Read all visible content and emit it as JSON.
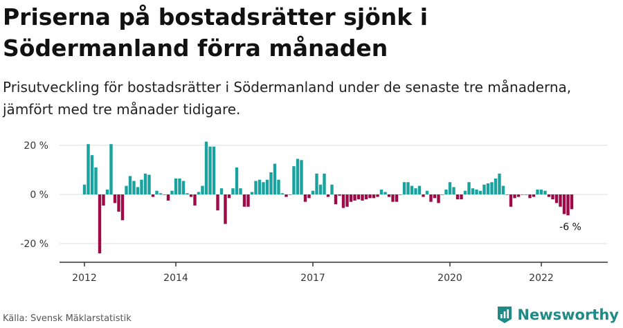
{
  "title": "Priserna på bostadsrätter sjönk i Södermanland förra månaden",
  "subtitle": "Prisutveckling för bostadsrätter i Södermanland under de senaste tre månaderna, jämfört med tre månader tidigare.",
  "source": "Källa: Svensk Mäklarstatistik",
  "brand": "Newsworthy",
  "colors": {
    "positive": "#1aa29f",
    "negative": "#9e0a48",
    "brand": "#1f8a86",
    "grid": "#dddddd",
    "axis": "#333333"
  },
  "chart_data": {
    "type": "bar",
    "x_start": "2012-01",
    "y_ticks": [
      20,
      0,
      -20
    ],
    "y_tick_labels": [
      "20 %",
      "0 %",
      "-20 %"
    ],
    "ylim": [
      -27,
      22
    ],
    "x_ticks": [
      "2012",
      "2014",
      "2017",
      "2020",
      "2022"
    ],
    "grid": true,
    "annotation": {
      "label": "-6 %",
      "target": "last"
    },
    "values": [
      4,
      20.5,
      16,
      11,
      -24,
      -4.5,
      2,
      20.5,
      -3.5,
      -7,
      -10.5,
      3.5,
      7.5,
      5.5,
      3,
      6,
      8.5,
      8,
      -1,
      1.5,
      0.5,
      0,
      -2.5,
      1.5,
      6.5,
      6.5,
      5.5,
      0.5,
      -1,
      -4.5,
      1,
      3.5,
      21.5,
      19.5,
      19.5,
      -6.5,
      2.5,
      -12,
      -1.5,
      2.5,
      11,
      2.5,
      -5,
      -5,
      1,
      5.5,
      6,
      5,
      6,
      9,
      12.5,
      6,
      0.5,
      -1,
      0,
      11.5,
      14.5,
      14,
      -3,
      -1.5,
      1.5,
      8.5,
      4,
      8.5,
      -1,
      4,
      -4,
      -0.5,
      -5.5,
      -5,
      -3,
      -2.5,
      -2,
      -2.5,
      -2,
      -1.5,
      -1.5,
      -1,
      2,
      1,
      -1,
      -3,
      -3,
      0,
      5,
      5,
      3.5,
      2.5,
      3.5,
      -1,
      1.5,
      -3,
      -1.5,
      -3.5,
      0,
      2,
      5,
      3,
      -2,
      -2,
      1.5,
      5,
      2.5,
      2,
      1.5,
      4,
      4.5,
      5,
      6.5,
      8.5,
      3.5,
      0,
      -5,
      -1.5,
      -1,
      0,
      0,
      -1.5,
      -1,
      2,
      2,
      1.5,
      -1,
      -2,
      -3.5,
      -5,
      -8,
      -8.5,
      -6
    ]
  }
}
